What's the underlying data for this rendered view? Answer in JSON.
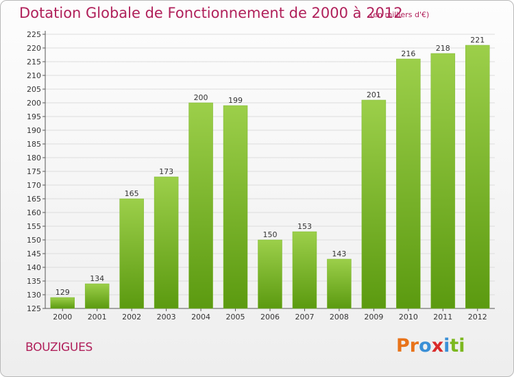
{
  "header": {
    "title": "Dotation Globale de Fonctionnement de 2000 à 2012",
    "subtitle": "(en milliers d'€)"
  },
  "footer": {
    "commune": "BOUZIGUES",
    "logo": "Proxiti",
    "logo_colors": [
      "#e8731a",
      "#e8731a",
      "#3a8fd6",
      "#d92a2a",
      "#3a8fd6",
      "#7cb81f",
      "#7cb81f"
    ]
  },
  "colors": {
    "bar_top": "#9ccf4a",
    "bar_bottom": "#5b9a10",
    "title": "#b0205a",
    "grid": "#dcdcdc"
  },
  "chart_data": {
    "type": "bar",
    "title": "Dotation Globale de Fonctionnement de 2000 à 2012",
    "subtitle": "(en milliers d'€)",
    "xlabel": "",
    "ylabel": "",
    "categories": [
      "2000",
      "2001",
      "2002",
      "2003",
      "2004",
      "2005",
      "2006",
      "2007",
      "2008",
      "2009",
      "2010",
      "2011",
      "2012"
    ],
    "values": [
      129,
      134,
      165,
      173,
      200,
      199,
      150,
      153,
      143,
      201,
      216,
      218,
      221
    ],
    "ylim": [
      125,
      225
    ],
    "yticks": [
      125,
      130,
      135,
      140,
      145,
      150,
      155,
      160,
      165,
      170,
      175,
      180,
      185,
      190,
      195,
      200,
      205,
      210,
      215,
      220,
      225
    ],
    "grid": true,
    "data_labels": true
  }
}
